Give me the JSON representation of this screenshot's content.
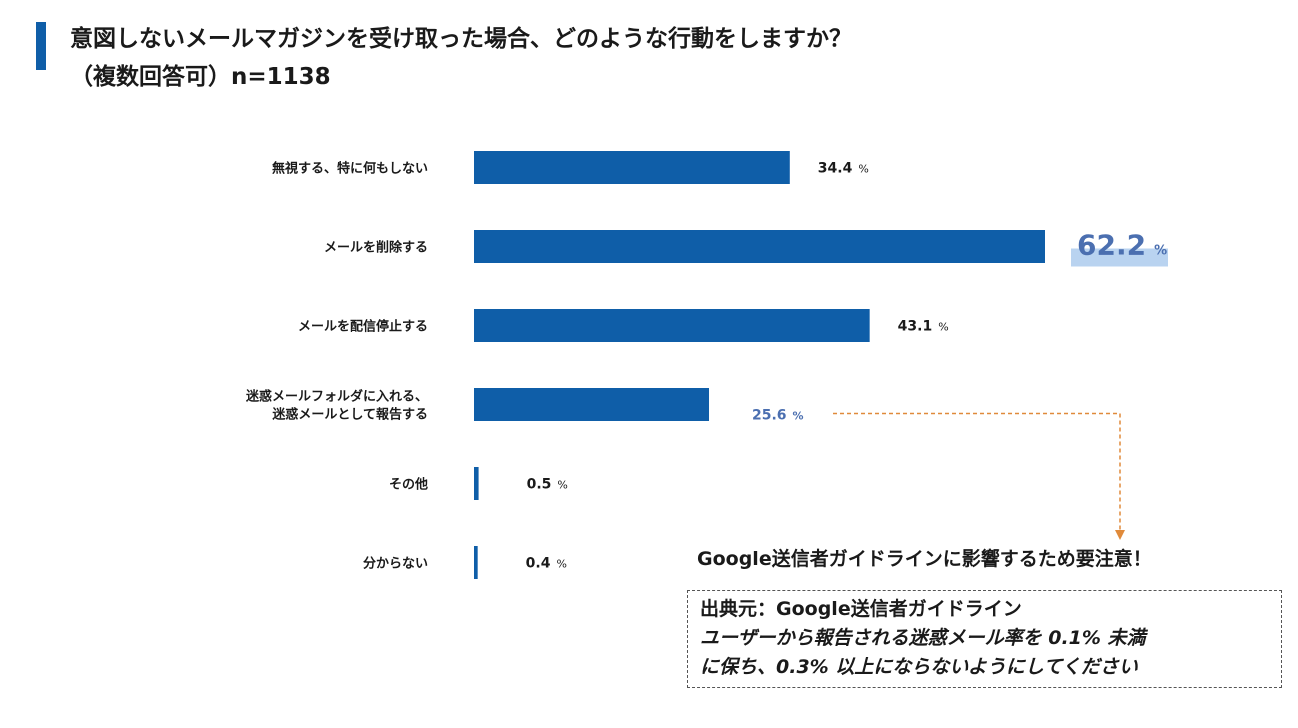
{
  "header": {
    "title": "意図しないメールマガジンを受け取った場合、どのような行動をしますか？",
    "subtitle": "（複数回答可）n=1138"
  },
  "colors": {
    "bar": "#0f5ea8",
    "accent": "#0f5ea8",
    "highlight_text": "#4b6fb0",
    "highlight_bg": "#b9d3f0",
    "arrow": "#e08a3a"
  },
  "chart_data": {
    "type": "bar",
    "orientation": "horizontal",
    "unit": "%",
    "categories": [
      [
        "無視する、特に何もしない"
      ],
      [
        "メールを削除する"
      ],
      [
        "メールを配信停止する"
      ],
      [
        "迷惑メールフォルダに入れる、",
        "迷惑メールとして報告する"
      ],
      [
        "その他"
      ],
      [
        "分からない"
      ]
    ],
    "values": [
      34.4,
      62.2,
      43.1,
      25.6,
      0.5,
      0.4
    ],
    "value_labels": [
      "34.4",
      "62.2",
      "43.1",
      "25.6",
      "0.5",
      "0.4"
    ],
    "highlight_index": 1,
    "emphasis_index": 3,
    "xlim": [
      0,
      62.2
    ]
  },
  "callout": {
    "warning": "Google送信者ガイドラインに影響するため要注意！",
    "source_title": "出典元：Google送信者ガイドライン",
    "source_quote_1": "ユーザーから報告される迷惑メール率を 0.1% 未満",
    "source_quote_2": "に保ち、0.3% 以上にならないようにしてください"
  }
}
